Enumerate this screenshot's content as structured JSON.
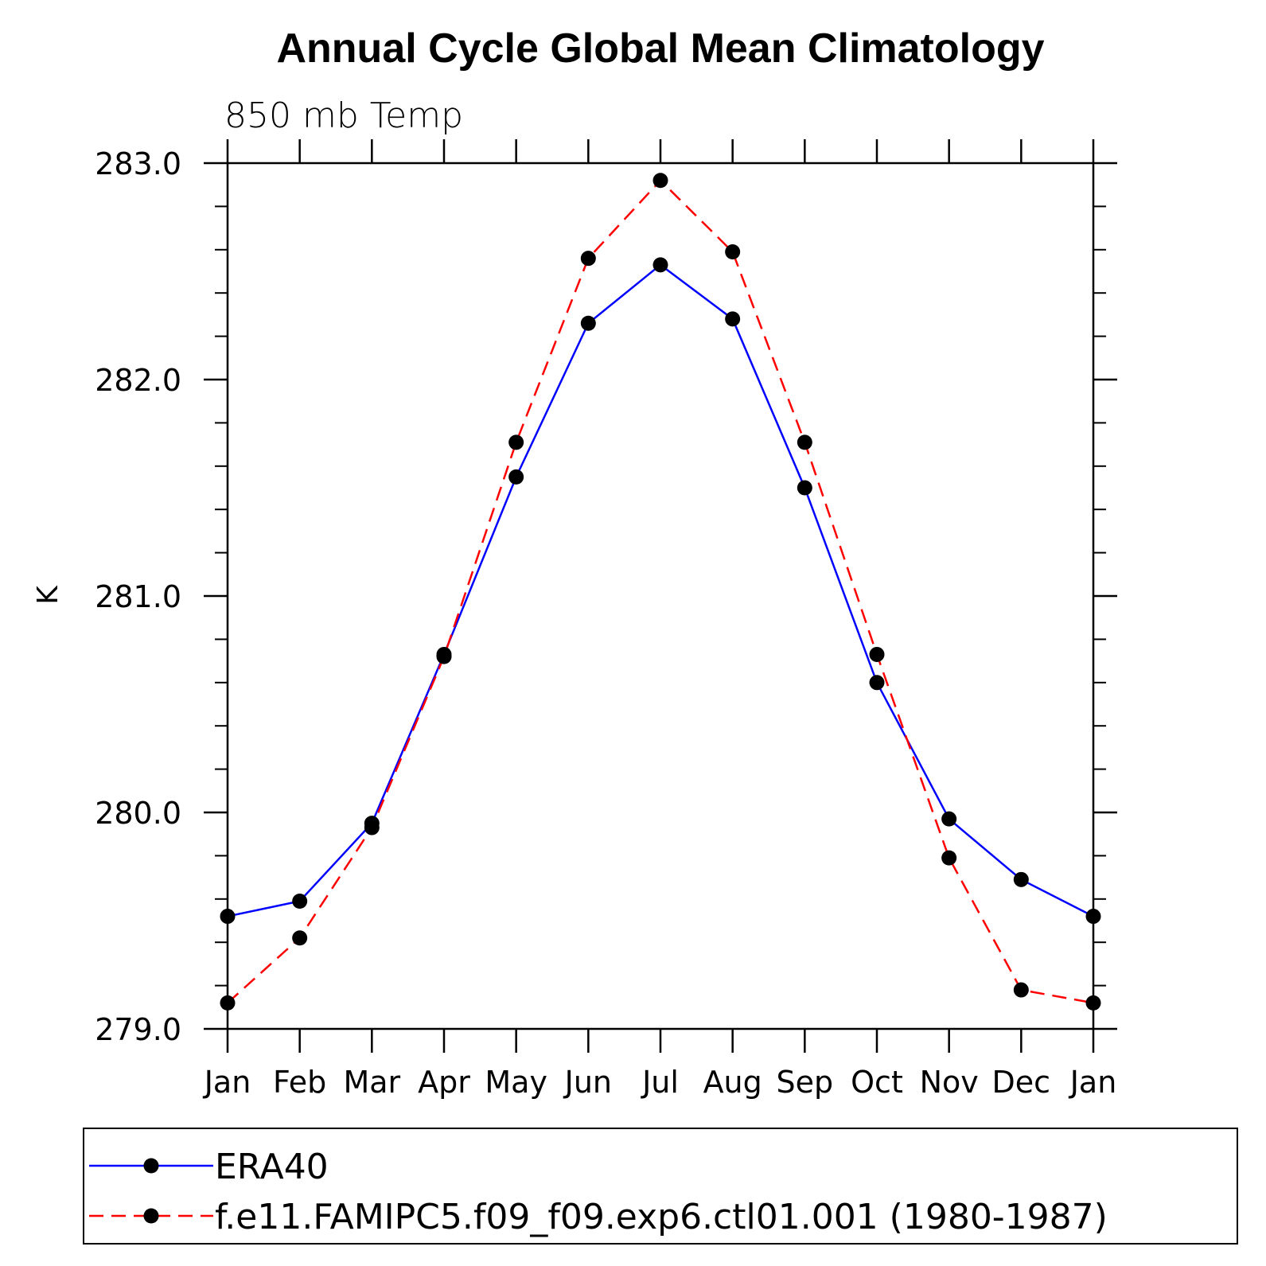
{
  "chart_data": {
    "type": "line",
    "title": "Annual Cycle Global Mean Climatology",
    "subtitle": "850 mb Temp",
    "xlabel": "",
    "ylabel": "K",
    "categories": [
      "Jan",
      "Feb",
      "Mar",
      "Apr",
      "May",
      "Jun",
      "Jul",
      "Aug",
      "Sep",
      "Oct",
      "Nov",
      "Dec",
      "Jan"
    ],
    "ylim": [
      279.0,
      283.0
    ],
    "y_ticks": [
      "279.0",
      "280.0",
      "281.0",
      "282.0",
      "283.0"
    ],
    "grid": false,
    "legend_position": "bottom",
    "series": [
      {
        "name": "ERA40",
        "color": "#0000ff",
        "line_style": "solid",
        "marker": "filled-circle",
        "values": [
          279.52,
          279.59,
          279.95,
          280.73,
          281.55,
          282.26,
          282.53,
          282.28,
          281.5,
          280.6,
          279.97,
          279.69,
          279.52
        ]
      },
      {
        "name": "f.e11.FAMIPC5.f09_f09.exp6.ctl01.001 (1980-1987)",
        "color": "#ff0000",
        "line_style": "dashed",
        "marker": "filled-circle",
        "values": [
          279.12,
          279.42,
          279.93,
          280.72,
          281.71,
          282.56,
          282.92,
          282.59,
          281.71,
          280.73,
          279.79,
          279.18,
          279.12
        ]
      }
    ]
  }
}
